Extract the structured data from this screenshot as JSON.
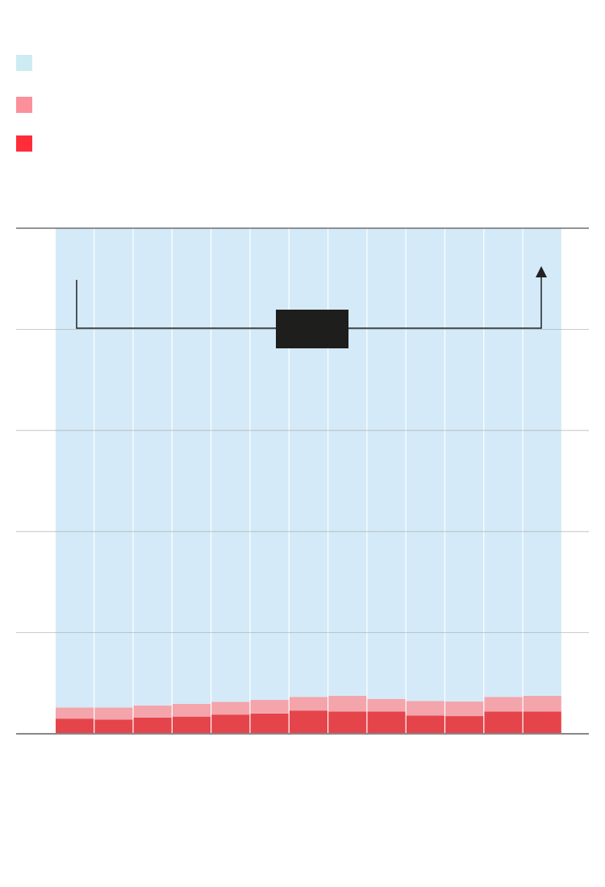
{
  "chart_data": {
    "type": "bar",
    "stacked": true,
    "normalized_percent": true,
    "ylim": [
      0,
      100
    ],
    "grid": true,
    "gridline_values": [
      20,
      40,
      60,
      80,
      100
    ],
    "legend_position": "top-left",
    "categories_count": 13,
    "series": [
      {
        "color": "#e5444b",
        "legend_color": "#ff2d3a",
        "values": [
          3.0,
          2.8,
          3.2,
          3.4,
          3.8,
          4.0,
          4.6,
          4.4,
          4.4,
          3.6,
          3.5,
          4.4,
          4.4
        ]
      },
      {
        "color": "#f3a5ab",
        "legend_color": "#fb909a",
        "values": [
          2.2,
          2.4,
          2.4,
          2.5,
          2.5,
          2.7,
          2.7,
          3.1,
          2.5,
          2.9,
          2.9,
          2.9,
          3.1
        ]
      },
      {
        "color": "#d4eaf8",
        "legend_color": "#cdebf3",
        "values": [
          94.8,
          94.8,
          94.4,
          94.1,
          93.7,
          93.3,
          92.7,
          92.5,
          93.1,
          93.5,
          93.6,
          92.7,
          92.5
        ]
      }
    ],
    "annotation": {
      "type": "bracket-arrow",
      "label_box_color": "#1e1e1c",
      "line_color": "#222222"
    }
  }
}
